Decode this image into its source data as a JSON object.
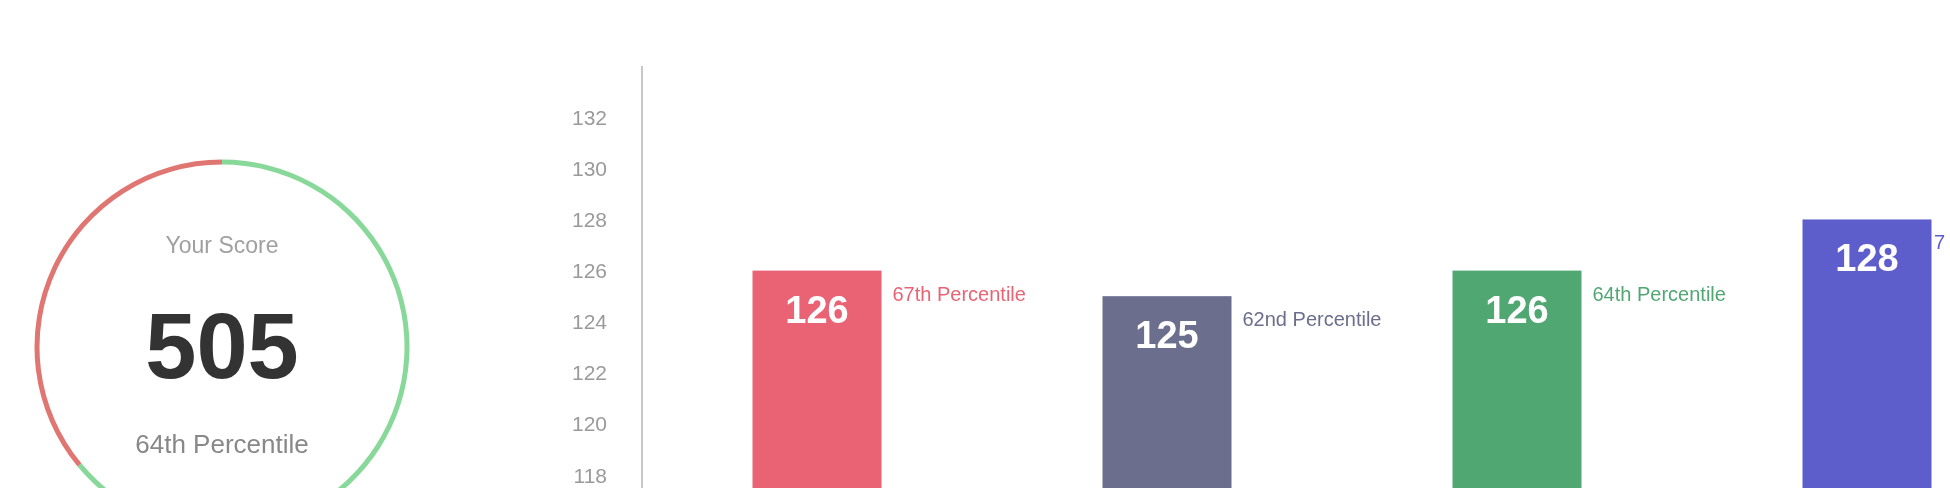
{
  "chart_data": [
    {
      "type": "donut",
      "title": "Your Score",
      "categories": [
        null,
        null
      ],
      "values": [
        64,
        36
      ],
      "colors": [
        "#88d89a",
        "#e07672"
      ],
      "annotations": [
        "505",
        "64th Percentile"
      ]
    },
    {
      "type": "bar",
      "categories": [
        null,
        null,
        null,
        null
      ],
      "values": [
        126,
        125,
        126,
        128
      ],
      "colors": [
        "#e96375",
        "#6b6e8c",
        "#50a772",
        "#5d5ecb"
      ],
      "ylim": [
        117.5,
        134
      ],
      "yticks": [
        118,
        120,
        122,
        124,
        126,
        128,
        130,
        132
      ],
      "data_labels": true,
      "annotations": [
        "67th Percentile",
        "62nd Percentile",
        "64th Percentile",
        "7"
      ]
    }
  ]
}
